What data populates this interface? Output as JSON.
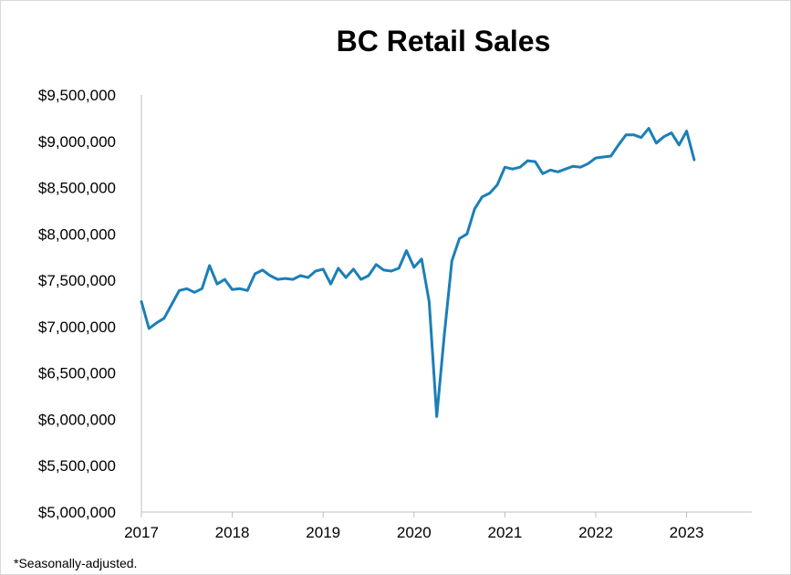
{
  "chart_data": {
    "type": "line",
    "title": "BC Retail Sales",
    "xlabel": "",
    "ylabel": "",
    "footnote": "*Seasonally-adjusted.",
    "ylim": [
      5000000,
      9500000
    ],
    "xlim": [
      2017,
      2024
    ],
    "y_ticks": [
      {
        "value": 9500000,
        "label": "$9,500,000"
      },
      {
        "value": 9000000,
        "label": "$9,000,000"
      },
      {
        "value": 8500000,
        "label": "$8,500,000"
      },
      {
        "value": 8000000,
        "label": "$8,000,000"
      },
      {
        "value": 7500000,
        "label": "$7,500,000"
      },
      {
        "value": 7000000,
        "label": "$7,000,000"
      },
      {
        "value": 6500000,
        "label": "$6,500,000"
      },
      {
        "value": 6000000,
        "label": "$6,000,000"
      },
      {
        "value": 5500000,
        "label": "$5,500,000"
      },
      {
        "value": 5000000,
        "label": "$5,000,000"
      }
    ],
    "x_ticks": [
      {
        "value": 2017,
        "label": "2017"
      },
      {
        "value": 2018,
        "label": "2018"
      },
      {
        "value": 2019,
        "label": "2019"
      },
      {
        "value": 2020,
        "label": "2020"
      },
      {
        "value": 2021,
        "label": "2021"
      },
      {
        "value": 2022,
        "label": "2022"
      },
      {
        "value": 2023,
        "label": "2023"
      }
    ],
    "grid": false,
    "legend": "none",
    "line_color": "#1b7fb8",
    "axis_color": "#bfbfbf",
    "series": [
      {
        "x": [
          "2017-01",
          "2017-02",
          "2017-03",
          "2017-04",
          "2017-05",
          "2017-06",
          "2017-07",
          "2017-08",
          "2017-09",
          "2017-10",
          "2017-11",
          "2017-12",
          "2018-01",
          "2018-02",
          "2018-03",
          "2018-04",
          "2018-05",
          "2018-06",
          "2018-07",
          "2018-08",
          "2018-09",
          "2018-10",
          "2018-11",
          "2018-12",
          "2019-01",
          "2019-02",
          "2019-03",
          "2019-04",
          "2019-05",
          "2019-06",
          "2019-07",
          "2019-08",
          "2019-09",
          "2019-10",
          "2019-11",
          "2019-12",
          "2020-01",
          "2020-02",
          "2020-03",
          "2020-04",
          "2020-05",
          "2020-06",
          "2020-07",
          "2020-08",
          "2020-09",
          "2020-10",
          "2020-11",
          "2020-12",
          "2021-01",
          "2021-02",
          "2021-03",
          "2021-04",
          "2021-05",
          "2021-06",
          "2021-07",
          "2021-08",
          "2021-09",
          "2021-10",
          "2021-11",
          "2021-12",
          "2022-01",
          "2022-02",
          "2022-03",
          "2022-04",
          "2022-05",
          "2022-06",
          "2022-07",
          "2022-08",
          "2022-09",
          "2022-10",
          "2022-11",
          "2022-12",
          "2023-01",
          "2023-02"
        ],
        "values": [
          7270000,
          6980000,
          7040000,
          7090000,
          7240000,
          7390000,
          7410000,
          7370000,
          7410000,
          7660000,
          7460000,
          7510000,
          7400000,
          7410000,
          7390000,
          7570000,
          7610000,
          7550000,
          7510000,
          7520000,
          7510000,
          7550000,
          7530000,
          7600000,
          7620000,
          7460000,
          7630000,
          7530000,
          7620000,
          7510000,
          7550000,
          7670000,
          7610000,
          7600000,
          7630000,
          7820000,
          7640000,
          7730000,
          7270000,
          6030000,
          6910000,
          7710000,
          7950000,
          8000000,
          8270000,
          8400000,
          8440000,
          8530000,
          8720000,
          8700000,
          8720000,
          8790000,
          8780000,
          8650000,
          8690000,
          8670000,
          8700000,
          8730000,
          8720000,
          8760000,
          8820000,
          8830000,
          8840000,
          8960000,
          9070000,
          9070000,
          9040000,
          9140000,
          8980000,
          9050000,
          9090000,
          8960000,
          9110000,
          8800000
        ]
      }
    ]
  }
}
